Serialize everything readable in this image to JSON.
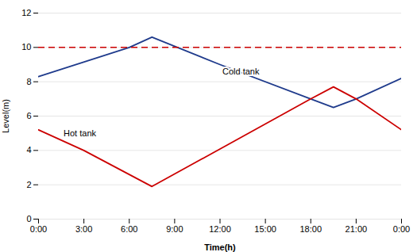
{
  "chart_data": {
    "type": "line",
    "xlabel": "Time(h)",
    "ylabel": "Level(m)",
    "series": [
      {
        "color": "#1F3B8C",
        "x": [
          0,
          6,
          7.5,
          12,
          18,
          19.5,
          21,
          24
        ],
        "values": [
          8.3,
          10.0,
          10.6,
          9.0,
          7.0,
          6.5,
          7.0,
          8.2
        ]
      },
      {
        "color": "#CC0000",
        "x": [
          0,
          3,
          7.5,
          18,
          19.5,
          21,
          24
        ],
        "values": [
          5.2,
          4.0,
          1.9,
          7.0,
          7.7,
          7.0,
          5.2
        ]
      }
    ],
    "hlines": [
      {
        "y": 10,
        "color": "#CC0000",
        "line_style": "dashed"
      }
    ],
    "annotations": [
      {
        "text": "Cold tank",
        "x": 12.0,
        "y": 8.6
      },
      {
        "text": "Hot tank",
        "x": 1.5,
        "y": 5.0
      }
    ],
    "xlim": [
      0,
      24
    ],
    "xticks": [
      {
        "value": 0,
        "label": "0:00"
      },
      {
        "value": 3,
        "label": "3:00"
      },
      {
        "value": 6,
        "label": "6:00"
      },
      {
        "value": 9,
        "label": "9:00"
      },
      {
        "value": 12,
        "label": "12:00"
      },
      {
        "value": 15,
        "label": "15:00"
      },
      {
        "value": 18,
        "label": "18:00"
      },
      {
        "value": 21,
        "label": "21:00"
      },
      {
        "value": 24,
        "label": "0:00"
      }
    ],
    "ylim": [
      0,
      12
    ],
    "yticks": [
      0,
      2,
      4,
      6,
      8,
      10,
      12
    ],
    "grid": "y"
  }
}
